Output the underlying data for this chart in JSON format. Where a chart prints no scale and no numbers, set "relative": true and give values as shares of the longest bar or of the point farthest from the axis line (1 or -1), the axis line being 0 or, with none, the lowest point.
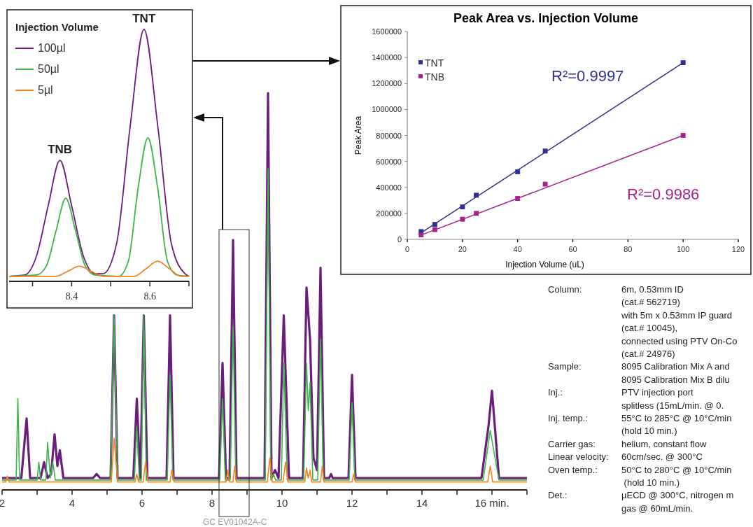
{
  "chart_data": [
    {
      "type": "line",
      "relative": true,
      "xlim": [
        2,
        17
      ],
      "xticks": [
        2,
        {
          "value": 3,
          "label": null
        },
        4,
        {
          "value": 5,
          "label": null
        },
        6,
        {
          "value": 7,
          "label": null
        },
        8,
        {
          "value": 9,
          "label": null
        },
        10,
        {
          "value": 11,
          "label": null
        },
        12,
        {
          "value": 13,
          "label": null
        },
        14,
        {
          "value": 15,
          "label": null
        },
        {
          "value": 16,
          "label": "16 min."
        },
        {
          "value": 17,
          "label": null
        }
      ],
      "annotations": [
        "GC  EV01042A-C"
      ],
      "series": [
        {
          "color": "#6b1d7c",
          "x": [
            2,
            2.55,
            2.7,
            2.8,
            3.1,
            3.2,
            3.3,
            3.4,
            3.5,
            3.58,
            3.65,
            3.75,
            4.6,
            4.7,
            4.8,
            5.1,
            5.2,
            5.3,
            5.75,
            5.85,
            5.95,
            6.05,
            6.15,
            6.7,
            6.8,
            6.9,
            8.2,
            8.3,
            8.4,
            8.5,
            8.6,
            8.7,
            9.5,
            9.6,
            9.7,
            9.8,
            9.9,
            10.05,
            10.2,
            10.6,
            10.7,
            10.8,
            10.9,
            11.0,
            11.1,
            11.2,
            11.35,
            11.4,
            11.45,
            11.9,
            12.0,
            12.1,
            15.7,
            15.9,
            16.0,
            16.2,
            17
          ],
          "values": [
            0.03,
            0.03,
            0.18,
            0.03,
            0.03,
            0.07,
            0.03,
            0.04,
            0.14,
            0.06,
            0.1,
            0.03,
            0.03,
            0.04,
            0.03,
            0.03,
            0.44,
            0.03,
            0.03,
            0.23,
            0.03,
            0.44,
            0.03,
            0.03,
            0.44,
            0.03,
            0.03,
            0.32,
            0.03,
            0.03,
            0.63,
            0.03,
            0.03,
            1,
            0.03,
            0.05,
            0.03,
            0.44,
            0.03,
            0.03,
            0.51,
            0.38,
            0.08,
            0.05,
            0.56,
            0.03,
            0.03,
            0.04,
            0.03,
            0.03,
            0.29,
            0.03,
            0.03,
            0.16,
            0.25,
            0.03,
            0.03
          ]
        },
        {
          "color": "#3cb54a",
          "x": [
            2,
            2.4,
            2.45,
            2.5,
            3.0,
            3.05,
            3.1,
            3.25,
            3.3,
            3.38,
            3.45,
            3.52,
            5.1,
            5.2,
            5.3,
            5.78,
            5.85,
            5.92,
            5.98,
            6.05,
            6.12,
            6.72,
            6.8,
            6.88,
            8.22,
            8.3,
            8.38,
            8.52,
            8.6,
            8.68,
            9.52,
            9.6,
            9.68,
            9.75,
            9.82,
            9.98,
            10.05,
            10.15,
            10.62,
            10.7,
            10.75,
            10.8,
            10.88,
            11.02,
            11.1,
            11.18,
            11.92,
            12.0,
            12.08,
            15.75,
            15.95,
            16.2,
            17
          ],
          "values": [
            0.025,
            0.025,
            0.23,
            0.025,
            0.025,
            0.07,
            0.025,
            0.025,
            0.12,
            0.03,
            0.07,
            0.025,
            0.025,
            0.44,
            0.025,
            0.025,
            0.16,
            0.025,
            0.025,
            0.44,
            0.025,
            0.025,
            0.29,
            0.025,
            0.025,
            0.23,
            0.025,
            0.025,
            0.41,
            0.025,
            0.025,
            0.81,
            0.025,
            0.04,
            0.025,
            0.025,
            0.32,
            0.025,
            0.025,
            0.32,
            0.2,
            0.27,
            0.025,
            0.025,
            0.38,
            0.025,
            0.025,
            0.22,
            0.025,
            0.025,
            0.15,
            0.025,
            0.025
          ]
        },
        {
          "color": "#f5821f",
          "x": [
            2,
            2.1,
            2.15,
            2.2,
            5.12,
            5.2,
            5.3,
            5.8,
            5.85,
            5.9,
            6.03,
            6.1,
            6.17,
            6.8,
            6.85,
            6.92,
            8.4,
            8.45,
            8.5,
            8.6,
            8.65,
            8.7,
            9.58,
            9.65,
            9.72,
            10.03,
            10.1,
            10.17,
            10.65,
            10.7,
            10.75,
            10.8,
            10.85,
            11.1,
            11.15,
            11.2,
            12.0,
            12.05,
            12.1,
            15.88,
            15.95,
            16.02,
            17
          ],
          "values": [
            0.02,
            0.02,
            0.035,
            0.02,
            0.02,
            0.13,
            0.02,
            0.02,
            0.04,
            0.02,
            0.02,
            0.07,
            0.02,
            0.02,
            0.05,
            0.02,
            0.02,
            0.05,
            0.02,
            0.02,
            0.06,
            0.02,
            0.02,
            0.08,
            0.02,
            0.02,
            0.07,
            0.02,
            0.02,
            0.055,
            0.03,
            0.05,
            0.02,
            0.02,
            0.06,
            0.02,
            0.02,
            0.04,
            0.02,
            0.02,
            0.06,
            0.02,
            0.02
          ]
        }
      ]
    },
    {
      "type": "line",
      "relative": true,
      "xlim": [
        8.24,
        8.7
      ],
      "xticks": [
        {
          "value": 8.3,
          "label": null
        },
        8.4,
        {
          "value": 8.5,
          "label": null
        },
        8.6,
        {
          "value": 8.7,
          "label": null
        }
      ],
      "tick_labels": "x",
      "legend": "top left",
      "legend_title": "Injection Volume",
      "annotations": [
        {
          "text": "TNB",
          "x": 8.37,
          "y": 0.48
        },
        {
          "text": "TNT",
          "x": 8.585,
          "y": 1
        }
      ],
      "series": [
        {
          "name": "100µl",
          "color": "#6b1d7c",
          "x": [
            8.24,
            8.28,
            8.31,
            8.34,
            8.37,
            8.4,
            8.43,
            8.46,
            8.48,
            8.515,
            8.55,
            8.585,
            8.62,
            8.655,
            8.69,
            8.7
          ],
          "values": [
            0.02,
            0.025,
            0.1,
            0.3,
            0.48,
            0.3,
            0.1,
            0.03,
            0.03,
            0.15,
            0.62,
            1,
            0.62,
            0.15,
            0.03,
            0.02
          ]
        },
        {
          "name": "50µl",
          "color": "#3cb54a",
          "x": [
            8.24,
            8.31,
            8.335,
            8.36,
            8.385,
            8.41,
            8.435,
            8.46,
            8.52,
            8.545,
            8.57,
            8.595,
            8.62,
            8.645,
            8.67,
            8.7
          ],
          "values": [
            0.02,
            0.025,
            0.06,
            0.2,
            0.33,
            0.2,
            0.06,
            0.025,
            0.02,
            0.08,
            0.37,
            0.57,
            0.37,
            0.08,
            0.025,
            0.02
          ]
        },
        {
          "name": "5µl",
          "color": "#f5821f",
          "x": [
            8.24,
            8.36,
            8.39,
            8.42,
            8.45,
            8.48,
            8.56,
            8.59,
            8.62,
            8.65,
            8.68,
            8.7
          ],
          "values": [
            0.02,
            0.02,
            0.04,
            0.06,
            0.04,
            0.02,
            0.02,
            0.05,
            0.08,
            0.05,
            0.02,
            0.02
          ]
        }
      ]
    },
    {
      "type": "scatter",
      "title": "Peak Area vs. Injection Volume",
      "xlabel": "Injection Volume (uL)",
      "ylabel": "Peak Area",
      "xlim": [
        0,
        120
      ],
      "xticks": [
        0,
        20,
        40,
        60,
        80,
        100,
        120
      ],
      "ylim": [
        0,
        1600000
      ],
      "yticks": [
        0,
        200000,
        400000,
        600000,
        800000,
        1000000,
        1200000,
        1400000,
        1600000
      ],
      "legend": "top left",
      "annotations": [
        "R²=0.9997",
        "R²=0.9986"
      ],
      "series": [
        {
          "name": "TNT",
          "marker": "square",
          "color": "#2e3192",
          "x": [
            5,
            10,
            20,
            25,
            40,
            50,
            100
          ],
          "values": [
            60000,
            115000,
            250000,
            340000,
            520000,
            680000,
            1360000
          ]
        },
        {
          "name": "TNB",
          "marker": "square",
          "color": "#a3238e",
          "x": [
            5,
            10,
            20,
            25,
            40,
            50,
            100
          ],
          "values": [
            35000,
            75000,
            155000,
            200000,
            315000,
            425000,
            800000
          ]
        },
        {
          "type": "line",
          "color": "#2e3192",
          "x": [
            5,
            100
          ],
          "values": [
            50000,
            1360000
          ]
        },
        {
          "type": "line",
          "color": "#a3238e",
          "x": [
            5,
            100
          ],
          "values": [
            33000,
            800000
          ]
        }
      ]
    },
    {
      "type": "other",
      "annotations": [
        "Column:\t6m, 0.53mm ID",
        "\t(cat.# 562719)",
        "\twith 5m x 0.53mm IP guard",
        "\t(cat.# 10045),",
        "\tconnected using PTV On-Co",
        "\t(cat.# 24976)",
        "Sample:\t8095 Calibration Mix A and",
        "\t8095 Calibration Mix B dilu",
        "Inj.:\tPTV injection port",
        "\tsplitless (15mL/min. @ 0.",
        "Inj. temp.:\t55°C to 285°C @ 10°C/min",
        "\t(hold 10 min.)",
        "Carrier gas:\thelium, constant flow",
        "Linear velocity:\t60cm/sec. @ 300°C",
        "Oven temp.:\t50°C to 280°C @ 10°C/min",
        "\t (hold 10 min.)",
        "Det.:\tµECD @ 300°C, nitrogen m",
        "\tgas @ 60mL/min."
      ]
    }
  ]
}
